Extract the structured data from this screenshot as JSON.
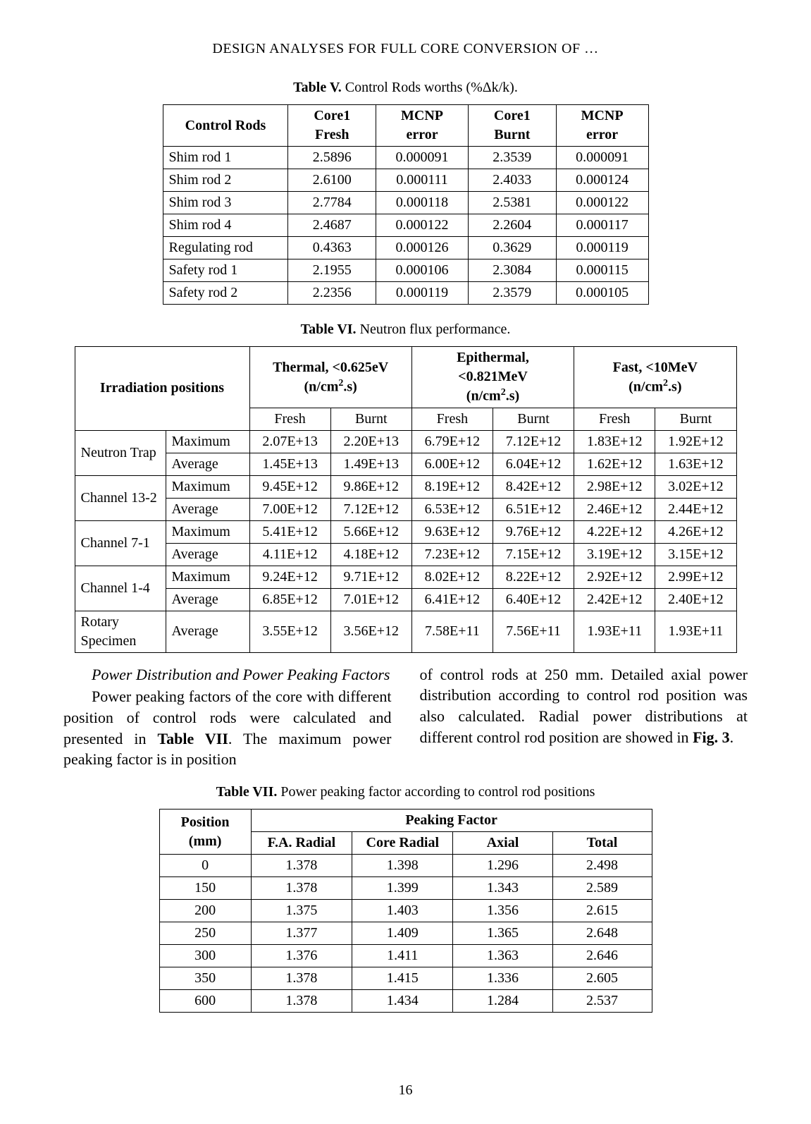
{
  "running_head": "DESIGN ANALYSES FOR FULL CORE CONVERSION OF …",
  "page_number": "16",
  "table5": {
    "caption_bold": "Table V.",
    "caption_rest": " Control Rods worths (%Δk/k).",
    "headers": {
      "c0": "Control Rods",
      "c1a": "Core1",
      "c1b": "Fresh",
      "c2a": "MCNP",
      "c2b": "error",
      "c3a": "Core1",
      "c3b": "Burnt",
      "c4a": "MCNP",
      "c4b": "error"
    },
    "rows": [
      [
        "Shim rod 1",
        "2.5896",
        "0.000091",
        "2.3539",
        "0.000091"
      ],
      [
        "Shim rod 2",
        "2.6100",
        "0.000111",
        "2.4033",
        "0.000124"
      ],
      [
        "Shim rod 3",
        "2.7784",
        "0.000118",
        "2.5381",
        "0.000122"
      ],
      [
        "Shim rod 4",
        "2.4687",
        "0.000122",
        "2.2604",
        "0.000117"
      ],
      [
        "Regulating rod",
        "0.4363",
        "0.000126",
        "0.3629",
        "0.000119"
      ],
      [
        "Safety rod 1",
        "2.1955",
        "0.000106",
        "2.3084",
        "0.000115"
      ],
      [
        "Safety rod 2",
        "2.2356",
        "0.000119",
        "2.3579",
        "0.000105"
      ]
    ]
  },
  "table6": {
    "caption_bold": "Table VI.",
    "caption_rest": " Neutron flux performance.",
    "head": {
      "irr": "Irradiation positions",
      "g1a": "Thermal, <0.625eV",
      "g2a": "Epithermal,",
      "g2b": "<0.821MeV",
      "g3a": "Fast, <10MeV",
      "unit_pre": "(n/cm",
      "unit_sup": "2",
      "unit_post": ".s)",
      "fresh": "Fresh",
      "burnt": "Burnt"
    },
    "rows": [
      {
        "pos": "Neutron Trap",
        "sub": [
          [
            "Maximum",
            "2.07E+13",
            "2.20E+13",
            "6.79E+12",
            "7.12E+12",
            "1.83E+12",
            "1.92E+12"
          ],
          [
            "Average",
            "1.45E+13",
            "1.49E+13",
            "6.00E+12",
            "6.04E+12",
            "1.62E+12",
            "1.63E+12"
          ]
        ]
      },
      {
        "pos": "Channel 13-2",
        "sub": [
          [
            "Maximum",
            "9.45E+12",
            "9.86E+12",
            "8.19E+12",
            "8.42E+12",
            "2.98E+12",
            "3.02E+12"
          ],
          [
            "Average",
            "7.00E+12",
            "7.12E+12",
            "6.53E+12",
            "6.51E+12",
            "2.46E+12",
            "2.44E+12"
          ]
        ]
      },
      {
        "pos": "Channel 7-1",
        "sub": [
          [
            "Maximum",
            "5.41E+12",
            "5.66E+12",
            "9.63E+12",
            "9.76E+12",
            "4.22E+12",
            "4.26E+12"
          ],
          [
            "Average",
            "4.11E+12",
            "4.18E+12",
            "7.23E+12",
            "7.15E+12",
            "3.19E+12",
            "3.15E+12"
          ]
        ]
      },
      {
        "pos": "Channel 1-4",
        "sub": [
          [
            "Maximum",
            "9.24E+12",
            "9.71E+12",
            "8.02E+12",
            "8.22E+12",
            "2.92E+12",
            "2.99E+12"
          ],
          [
            "Average",
            "6.85E+12",
            "7.01E+12",
            "6.41E+12",
            "6.40E+12",
            "2.42E+12",
            "2.40E+12"
          ]
        ]
      },
      {
        "pos": "Rotary Specimen",
        "sub": [
          [
            "Average",
            "3.55E+12",
            "3.56E+12",
            "7.58E+11",
            "7.56E+11",
            "1.93E+11",
            "1.93E+11"
          ]
        ]
      }
    ]
  },
  "body": {
    "subhead": "Power Distribution and Power Peaking Factors",
    "left": "Power peaking factors of the core with different position of control rods were calculated and presented in ",
    "left_bold": "Table VII",
    "left_tail": ". The maximum power peaking factor is in position",
    "right_a": "of control rods at 250 mm. Detailed axial power distribution according to control rod position was also calculated. Radial power distributions at different control rod position are showed in ",
    "right_bold": "Fig. 3",
    "right_tail": "."
  },
  "table7": {
    "caption_bold": "Table VII.",
    "caption_rest": " Power peaking factor according to control rod positions",
    "head": {
      "pos_a": "Position",
      "pos_b": "(mm)",
      "pf": "Peaking Factor",
      "c1": "F.A. Radial",
      "c2": "Core Radial",
      "c3": "Axial",
      "c4": "Total"
    },
    "rows": [
      [
        "0",
        "1.378",
        "1.398",
        "1.296",
        "2.498"
      ],
      [
        "150",
        "1.378",
        "1.399",
        "1.343",
        "2.589"
      ],
      [
        "200",
        "1.375",
        "1.403",
        "1.356",
        "2.615"
      ],
      [
        "250",
        "1.377",
        "1.409",
        "1.365",
        "2.648"
      ],
      [
        "300",
        "1.376",
        "1.411",
        "1.363",
        "2.646"
      ],
      [
        "350",
        "1.378",
        "1.415",
        "1.336",
        "2.605"
      ],
      [
        "600",
        "1.378",
        "1.434",
        "1.284",
        "2.537"
      ]
    ]
  }
}
